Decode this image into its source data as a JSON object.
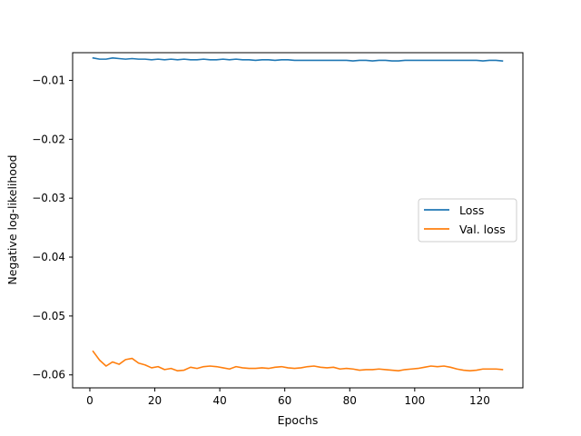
{
  "chart_data": {
    "type": "line",
    "title": "",
    "xlabel": "Epochs",
    "ylabel": "Negative log-likelihood",
    "xlim": [
      -5.3,
      133.3
    ],
    "ylim": [
      -0.0622,
      -0.0053
    ],
    "xticks": [
      0,
      20,
      40,
      60,
      80,
      100,
      120
    ],
    "yticks": [
      -0.01,
      -0.02,
      -0.03,
      -0.04,
      -0.05,
      -0.06
    ],
    "xtick_labels": [
      "0",
      "20",
      "40",
      "60",
      "80",
      "100",
      "120"
    ],
    "ytick_labels": [
      "−0.01",
      "−0.02",
      "−0.03",
      "−0.04",
      "−0.05",
      "−0.06"
    ],
    "grid": false,
    "legend": {
      "placement": "center-right"
    },
    "series": [
      {
        "name": "Loss",
        "color": "#1f77b4",
        "x": [
          1,
          3,
          5,
          7,
          9,
          11,
          13,
          15,
          17,
          19,
          21,
          23,
          25,
          27,
          29,
          31,
          33,
          35,
          37,
          39,
          41,
          43,
          45,
          47,
          49,
          51,
          53,
          55,
          57,
          59,
          61,
          63,
          65,
          67,
          69,
          71,
          73,
          75,
          77,
          79,
          81,
          83,
          85,
          87,
          89,
          91,
          93,
          95,
          97,
          99,
          101,
          103,
          105,
          107,
          109,
          111,
          113,
          115,
          117,
          119,
          121,
          123,
          125,
          127
        ],
        "y": [
          -0.0062,
          -0.0064,
          -0.0064,
          -0.0062,
          -0.0063,
          -0.0064,
          -0.0063,
          -0.0064,
          -0.0064,
          -0.0065,
          -0.0064,
          -0.0065,
          -0.0064,
          -0.0065,
          -0.0064,
          -0.0065,
          -0.0065,
          -0.0064,
          -0.0065,
          -0.0065,
          -0.0064,
          -0.0065,
          -0.0064,
          -0.0065,
          -0.0065,
          -0.0066,
          -0.0065,
          -0.0065,
          -0.0066,
          -0.0065,
          -0.0065,
          -0.0066,
          -0.0066,
          -0.0066,
          -0.0066,
          -0.0066,
          -0.0066,
          -0.0066,
          -0.0066,
          -0.0066,
          -0.0067,
          -0.0066,
          -0.0066,
          -0.0067,
          -0.0066,
          -0.0066,
          -0.0067,
          -0.0067,
          -0.0066,
          -0.0066,
          -0.0066,
          -0.0066,
          -0.0066,
          -0.0066,
          -0.0066,
          -0.0066,
          -0.0066,
          -0.0066,
          -0.0066,
          -0.0066,
          -0.0067,
          -0.0066,
          -0.0066,
          -0.0067
        ]
      },
      {
        "name": "Val. loss",
        "color": "#ff7f0e",
        "x": [
          1,
          3,
          5,
          7,
          9,
          11,
          13,
          15,
          17,
          19,
          21,
          23,
          25,
          27,
          29,
          31,
          33,
          35,
          37,
          39,
          41,
          43,
          45,
          47,
          49,
          51,
          53,
          55,
          57,
          59,
          61,
          63,
          65,
          67,
          69,
          71,
          73,
          75,
          77,
          79,
          81,
          83,
          85,
          87,
          89,
          91,
          93,
          95,
          97,
          99,
          101,
          103,
          105,
          107,
          109,
          111,
          113,
          115,
          117,
          119,
          121,
          123,
          125,
          127
        ],
        "y": [
          -0.056,
          -0.0575,
          -0.0585,
          -0.0578,
          -0.0582,
          -0.0574,
          -0.0572,
          -0.058,
          -0.0583,
          -0.0588,
          -0.0586,
          -0.0591,
          -0.0589,
          -0.0593,
          -0.0592,
          -0.0587,
          -0.0589,
          -0.0586,
          -0.0585,
          -0.0586,
          -0.0588,
          -0.059,
          -0.0586,
          -0.0588,
          -0.0589,
          -0.0589,
          -0.0588,
          -0.0589,
          -0.0587,
          -0.0586,
          -0.0588,
          -0.0589,
          -0.0588,
          -0.0586,
          -0.0585,
          -0.0587,
          -0.0588,
          -0.0587,
          -0.059,
          -0.0589,
          -0.059,
          -0.0592,
          -0.0591,
          -0.0591,
          -0.059,
          -0.0591,
          -0.0592,
          -0.0593,
          -0.0591,
          -0.059,
          -0.0589,
          -0.0587,
          -0.0585,
          -0.0586,
          -0.0585,
          -0.0587,
          -0.059,
          -0.0592,
          -0.0593,
          -0.0592,
          -0.059,
          -0.059,
          -0.059,
          -0.0591
        ]
      }
    ]
  }
}
